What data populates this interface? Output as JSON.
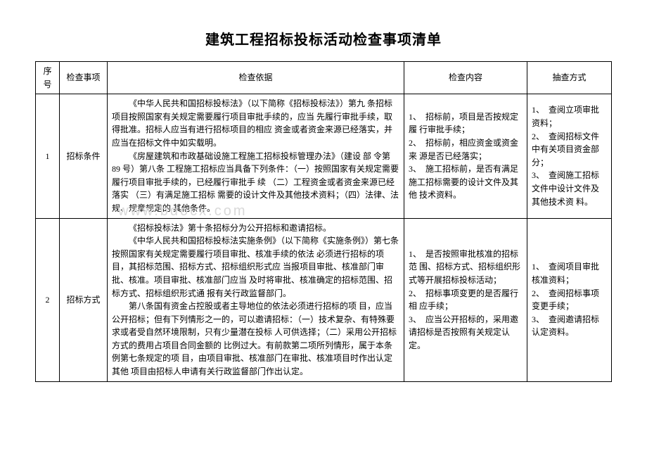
{
  "title": "建筑工程招标投标活动检查事项清单",
  "headers": {
    "seq": "序号",
    "item": "检查事项",
    "basis": "检查依据",
    "content": "检查内容",
    "method": "抽查方式"
  },
  "rows": [
    {
      "seq": "1",
      "item": "招标条件",
      "basis_paras": [
        "《中华人民共和国招标投标法》（以下简称《招标投标法》）第九  条招标项目按照国家有关规定需要履行项目审批手续的，应当  先履行审批手续，取得批准。招标人应当有进行招标项目的相应  资金或者资金来源已经落实，并应当在招标文件中如实载明。",
        "《房屋建筑和市政基础设施工程施工招标投标管理办法》（建设  部  令第 89 号）第八条 工程施工招标应当具备下列条件：（一）按照国家有关规定需要履行项目审批手续的，已经履行审批手  续 （二）工程资金或者资金来源已经落实 （三）有满足施工招标  需要的设计文件及其他技术资料；（四）法律、法规、规章规定的  其他条件。"
      ],
      "content_paras": [
        "1、　招标前，项目是否按规定履  行审批手续；",
        "2、　招标前，相应资金或资金来  源是否已经落实；",
        "3、　施工招标前，是否有满足施工招标需要的设计文件及其他  技术资料。"
      ],
      "method_paras": [
        "1、　查阅立项审批  资料；",
        "2、　查阅招标文件  中有关项目资金部分；",
        "3、　查阅施工招标  文件中设计文件及其他技术资  料。"
      ],
      "watermark": "www.bdocx.com"
    },
    {
      "seq": "2",
      "item": "招标方式",
      "basis_paras": [
        "《招标投标法》第十条招标分为公开招标和邀请招标。",
        "《中华人民共和国招标投标法实施条例》（以下简称《实施条例》）第七条  按照国家有关规定需要履行项目审批、核准手续的依法  必须进行招标的项目，其招标范围、招标方式、招标组织形式应  当报项目审批、核准部门审批、核准。项目审批、核准部门应当  及时将审批、核准确定的招标范围、招标方式、招标组织形式通  报有关行政监督部门。",
        "第八条国有资金占控股或者主导地位的依法必须进行招标的项  目，应当公开招标；但有下列情形之一的，可以邀请招标：（一）技术复杂、有特殊要求或者受自然环境限制，只有少量潜在投标  人可供选择；（二）采用公开招标方式的费用占项目合同金额的  比例过大。有前款第二项所列情形，属于本条例第七条规定的项  目，由项目审批、核准部门在审批、核准项目时作出认定  其他  项目由招标人申请有关行政监督部门作出认定。"
      ],
      "content_paras": [
        "1、　是否按照审批核准的招标范  围、招标方式、招标组织形式等开展招标投标活动；",
        "2、　招标事项变更的是否履行相  应手续；",
        "3、　应当公开招标的，采用邀请招标是否按照有关规定认定。"
      ],
      "method_paras": [
        "1、　查阅项目审批  核准资料；",
        "2、　查阅招标事项变更手续；",
        "3、　查阅邀请招标  认定资料。"
      ]
    }
  ]
}
